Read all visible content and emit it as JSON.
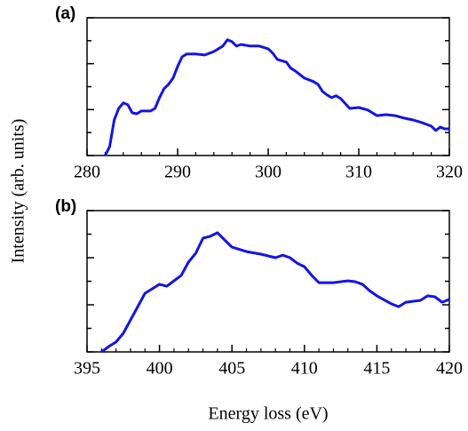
{
  "ylabel": "Intensity (arb. units)",
  "xlabel": "Energy loss (eV)",
  "chart_data": [
    {
      "type": "line",
      "label": "(a)",
      "color": "#1414e6",
      "xlim": [
        280,
        320
      ],
      "xticks": [
        280,
        290,
        300,
        310,
        320
      ],
      "ylim": [
        0,
        6
      ],
      "yticks": [
        0,
        1,
        2,
        3,
        4,
        5,
        6
      ],
      "x": [
        282,
        282.5,
        283,
        283.5,
        284,
        284.5,
        285,
        285.5,
        286,
        287,
        287.5,
        288,
        288.5,
        289,
        289.5,
        290,
        290.5,
        291,
        292,
        293,
        294,
        295,
        295.5,
        296,
        296.5,
        297,
        298,
        299,
        300,
        300.5,
        301,
        302,
        302.5,
        303,
        304,
        305,
        305.5,
        306,
        306.5,
        307,
        307.5,
        308,
        309,
        310,
        311,
        312,
        313,
        314,
        315,
        316,
        317,
        318,
        318.5,
        319,
        319.5,
        320
      ],
      "values": [
        0,
        0.39,
        1.55,
        2.05,
        2.29,
        2.21,
        1.86,
        1.82,
        1.94,
        1.94,
        2.05,
        2.52,
        2.91,
        3.1,
        3.37,
        3.88,
        4.3,
        4.42,
        4.42,
        4.38,
        4.53,
        4.77,
        5.04,
        4.96,
        4.77,
        4.84,
        4.77,
        4.77,
        4.65,
        4.46,
        4.19,
        4.07,
        3.8,
        3.68,
        3.37,
        3.22,
        3.1,
        2.79,
        2.64,
        2.52,
        2.6,
        2.48,
        2.05,
        2.09,
        1.98,
        1.74,
        1.78,
        1.74,
        1.63,
        1.55,
        1.43,
        1.28,
        1.09,
        1.24,
        1.16,
        1.16
      ]
    },
    {
      "type": "line",
      "label": "(b)",
      "color": "#1414e6",
      "xlim": [
        395,
        420
      ],
      "xticks": [
        395,
        400,
        405,
        410,
        415,
        420
      ],
      "ylim": [
        0,
        6
      ],
      "yticks": [
        0,
        1,
        2,
        3,
        4,
        5,
        6
      ],
      "x": [
        396,
        396.5,
        397,
        397.5,
        398,
        398.5,
        399,
        399.5,
        400,
        400.5,
        401,
        401.5,
        402,
        402.5,
        403,
        403.5,
        404,
        404.5,
        405,
        406,
        407,
        408,
        408.5,
        409,
        409.5,
        410,
        410.5,
        411,
        412,
        413,
        413.5,
        414,
        414.5,
        415,
        416,
        416.5,
        417,
        418,
        418.5,
        419,
        419.5,
        420
      ],
      "values": [
        0,
        0.23,
        0.42,
        0.79,
        1.36,
        1.92,
        2.49,
        2.68,
        2.87,
        2.79,
        3.02,
        3.25,
        3.81,
        4.19,
        4.83,
        4.91,
        5.06,
        4.75,
        4.45,
        4.26,
        4.15,
        4.0,
        4.11,
        4.0,
        3.77,
        3.62,
        3.25,
        2.94,
        2.94,
        3.02,
        2.98,
        2.87,
        2.6,
        2.38,
        2.04,
        1.92,
        2.11,
        2.19,
        2.38,
        2.34,
        2.11,
        2.23
      ]
    }
  ]
}
